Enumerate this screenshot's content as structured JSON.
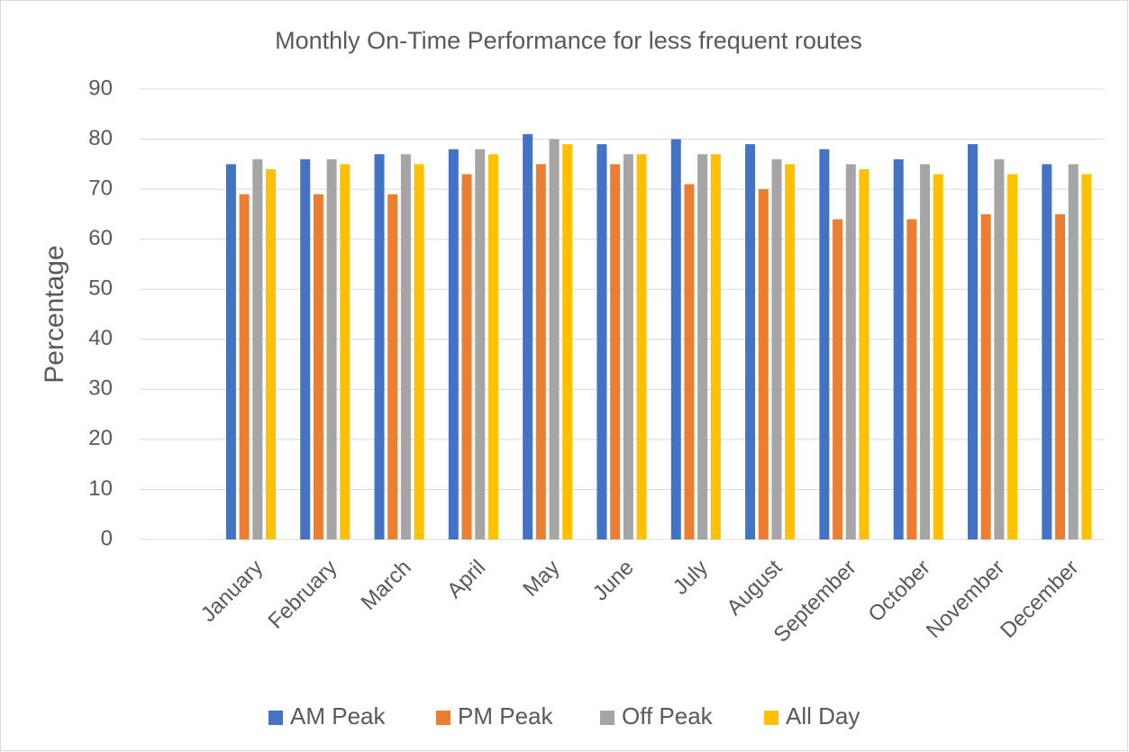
{
  "chart_data": {
    "type": "bar",
    "title": "Monthly On-Time Performance for less frequent routes",
    "y_label": "Percentage",
    "categories": [
      null,
      "January",
      "February",
      "March",
      "April",
      "May",
      "June",
      "July",
      "August",
      "September",
      "October",
      "November",
      "December"
    ],
    "series": [
      {
        "name": "AM Peak",
        "color": "#4472c4",
        "values": [
          null,
          75,
          76,
          77,
          78,
          81,
          79,
          80,
          79,
          78,
          76,
          79,
          75
        ]
      },
      {
        "name": "PM Peak",
        "color": "#ed7d31",
        "values": [
          null,
          69,
          69,
          69,
          73,
          75,
          75,
          71,
          70,
          64,
          64,
          65,
          65
        ]
      },
      {
        "name": "Off Peak",
        "color": "#a5a5a5",
        "values": [
          null,
          76,
          76,
          77,
          78,
          80,
          77,
          77,
          76,
          75,
          75,
          76,
          75
        ]
      },
      {
        "name": "All Day",
        "color": "#ffc000",
        "values": [
          null,
          74,
          75,
          75,
          77,
          79,
          77,
          77,
          75,
          74,
          73,
          73,
          73
        ]
      }
    ],
    "ylim": [
      0,
      90
    ],
    "yticks": [
      0,
      10,
      20,
      30,
      40,
      50,
      60,
      70,
      80,
      90
    ],
    "grid": true,
    "legend": "bottom"
  }
}
